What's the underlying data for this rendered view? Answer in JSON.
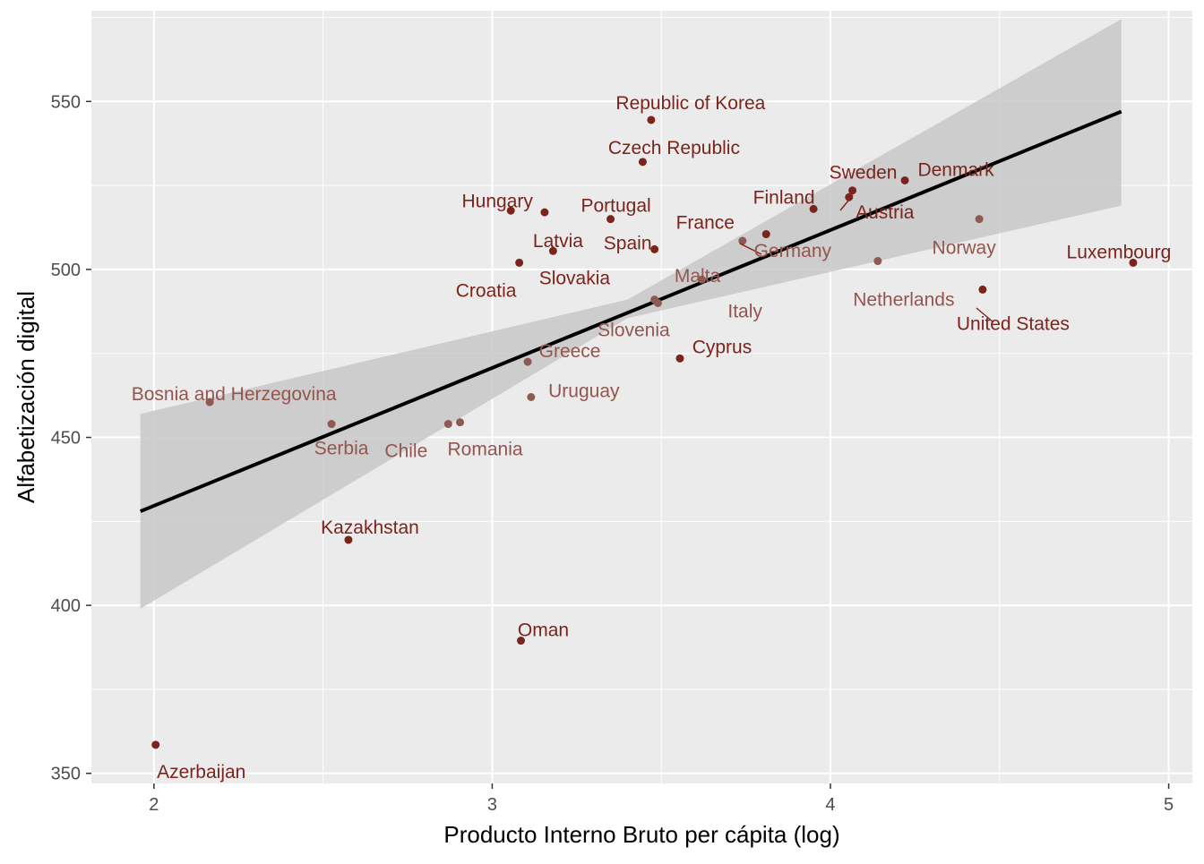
{
  "chart_data": {
    "type": "scatter",
    "title": "",
    "xlabel": "Producto Interno Bruto per cápita (log)",
    "ylabel": "Alfabetización digital",
    "xlim": [
      1.815,
      5.07
    ],
    "ylim": [
      347,
      577
    ],
    "xticks": [
      2,
      3,
      4,
      5
    ],
    "xtick_labels": [
      "2",
      "3",
      "4",
      "5"
    ],
    "yticks": [
      350,
      400,
      450,
      500,
      550
    ],
    "ytick_labels": [
      "350",
      "400",
      "450",
      "500",
      "550"
    ],
    "grid": true,
    "background": "#ebebeb",
    "colors": {
      "point": "#7b241c",
      "label": "#7b241c",
      "point_faded": "#8f5a52",
      "label_faded": "#94554f",
      "fit_line": "#000000",
      "ribbon": "#c8c8c8"
    },
    "fit": {
      "x": [
        1.96,
        4.86
      ],
      "y": [
        428,
        547
      ],
      "ribbon_lower": [
        [
          1.96,
          399
        ],
        [
          3.4,
          485.5
        ],
        [
          4.86,
          519
        ]
      ],
      "ribbon_upper": [
        [
          1.96,
          457
        ],
        [
          3.4,
          491
        ],
        [
          4.86,
          574.5
        ]
      ]
    },
    "points": [
      {
        "country": "Republic of Korea",
        "x": 3.47,
        "y": 544.5,
        "faded": false
      },
      {
        "country": "Czech Republic",
        "x": 3.445,
        "y": 532,
        "faded": false
      },
      {
        "country": "Sweden",
        "x": 4.065,
        "y": 523.5,
        "faded": false
      },
      {
        "country": "Denmark",
        "x": 4.22,
        "y": 526.5,
        "faded": false
      },
      {
        "country": "Hungary",
        "x": 3.055,
        "y": 517.5,
        "faded": false
      },
      {
        "country": "Portugal",
        "x": 3.35,
        "y": 515,
        "faded": false
      },
      {
        "country": "Finland",
        "x": 3.95,
        "y": 518,
        "faded": false
      },
      {
        "country": "Austria",
        "x": 4.055,
        "y": 521.5,
        "faded": false
      },
      {
        "country": "Latvia",
        "x": 3.155,
        "y": 517,
        "faded": false
      },
      {
        "country": "France",
        "x": 3.81,
        "y": 510.5,
        "faded": false
      },
      {
        "country": "Germany",
        "x": 3.74,
        "y": 508.5,
        "faded": true
      },
      {
        "country": "Norway",
        "x": 4.44,
        "y": 515,
        "faded": true
      },
      {
        "country": "Luxembourg",
        "x": 4.895,
        "y": 502,
        "faded": false
      },
      {
        "country": "Spain",
        "x": 3.48,
        "y": 506,
        "faded": false
      },
      {
        "country": "Slovakia",
        "x": 3.18,
        "y": 505.5,
        "faded": false
      },
      {
        "country": "Croatia",
        "x": 3.08,
        "y": 502,
        "faded": false
      },
      {
        "country": "Malta",
        "x": 3.62,
        "y": 497,
        "faded": true
      },
      {
        "country": "Netherlands",
        "x": 4.14,
        "y": 502.5,
        "faded": true
      },
      {
        "country": "United States",
        "x": 4.45,
        "y": 494,
        "faded": false
      },
      {
        "country": "Italy",
        "x": 3.48,
        "y": 491,
        "faded": true
      },
      {
        "country": "Slovenia",
        "x": 3.49,
        "y": 490,
        "faded": true
      },
      {
        "country": "Greece",
        "x": 3.105,
        "y": 472.5,
        "faded": true
      },
      {
        "country": "Cyprus",
        "x": 3.555,
        "y": 473.5,
        "faded": false
      },
      {
        "country": "Uruguay",
        "x": 3.115,
        "y": 462,
        "faded": true
      },
      {
        "country": "Bosnia and Herzegovina",
        "x": 2.165,
        "y": 460.5,
        "faded": true
      },
      {
        "country": "Serbia",
        "x": 2.525,
        "y": 454,
        "faded": true
      },
      {
        "country": "Chile",
        "x": 2.87,
        "y": 454,
        "faded": true
      },
      {
        "country": "Romania",
        "x": 2.905,
        "y": 454.5,
        "faded": true
      },
      {
        "country": "Kazakhstan",
        "x": 2.575,
        "y": 419.5,
        "faded": false
      },
      {
        "country": "Oman",
        "x": 3.085,
        "y": 389.5,
        "faded": false
      },
      {
        "country": "Azerbaijan",
        "x": 2.005,
        "y": 358.5,
        "faded": false
      }
    ]
  }
}
